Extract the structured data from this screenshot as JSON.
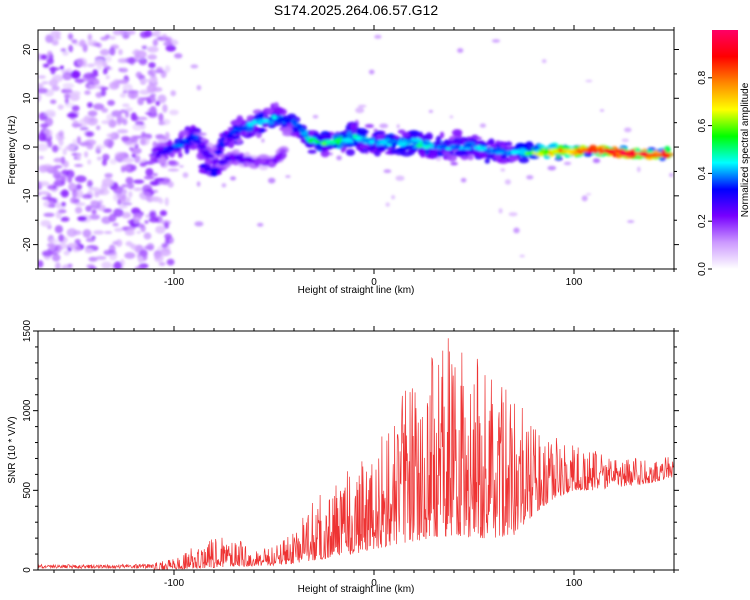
{
  "title": "S174.2025.264.06.57.G12",
  "chart_data": [
    {
      "type": "heatmap",
      "name": "spectrogram",
      "xlabel": "Height of straight line (km)",
      "ylabel": "Frequency (Hz)",
      "xlim": [
        -168,
        150
      ],
      "ylim": [
        -25,
        24
      ],
      "xticks": [
        -100,
        0,
        100
      ],
      "yticks": [
        -20,
        -10,
        0,
        10,
        20
      ],
      "colorbar": {
        "label": "Normalized spectral amplitude",
        "range": [
          0,
          1
        ],
        "ticks": [
          0.0,
          0.2,
          0.4,
          0.6,
          0.8
        ],
        "colors": [
          "#ffffff",
          "#cc99ff",
          "#7700ff",
          "#0000ff",
          "#00ffff",
          "#00ff00",
          "#ffff00",
          "#ff8800",
          "#ff0000",
          "#ff0066"
        ]
      },
      "noise_region": {
        "x": [
          -168,
          -100
        ],
        "y": [
          -25,
          24
        ],
        "amplitude": 0.2
      },
      "signal_track": {
        "x": [
          -110,
          -100,
          -90,
          -80,
          -75,
          -70,
          -60,
          -50,
          -40,
          -30,
          -20,
          -10,
          0,
          10,
          20,
          30,
          40,
          50,
          60,
          70,
          80,
          90,
          100,
          110,
          120,
          130,
          140,
          148
        ],
        "frequency": [
          -2,
          0,
          2,
          -3,
          2,
          3,
          5,
          6,
          5,
          1,
          1,
          2,
          1,
          1,
          1,
          0,
          0,
          0,
          -1,
          -1,
          -1,
          -1,
          -1,
          -0.5,
          -1,
          -1.5,
          -1.5,
          -1.5
        ],
        "width": [
          2,
          3,
          3,
          2,
          2,
          3,
          3,
          3,
          3,
          2,
          2,
          3,
          3,
          3,
          3,
          3,
          3,
          3,
          3,
          2,
          1.5,
          1.5,
          1,
          1,
          1,
          1,
          1,
          1
        ],
        "amplitude": [
          0.25,
          0.35,
          0.35,
          0.25,
          0.35,
          0.35,
          0.4,
          0.4,
          0.35,
          0.5,
          0.55,
          0.45,
          0.4,
          0.4,
          0.45,
          0.4,
          0.4,
          0.4,
          0.4,
          0.4,
          0.6,
          0.7,
          0.75,
          0.85,
          0.9,
          0.9,
          0.85,
          0.85
        ]
      },
      "secondary_track": {
        "x": [
          -85,
          -80,
          -75,
          -70,
          -60,
          -50,
          -45
        ],
        "frequency": [
          -4,
          -5,
          -3,
          -2,
          -3,
          -3,
          -1
        ],
        "width": [
          1.5,
          1.5,
          1.5,
          1.5,
          1,
          1,
          1
        ],
        "amplitude": [
          0.3,
          0.3,
          0.25,
          0.25,
          0.2,
          0.2,
          0.2
        ]
      }
    },
    {
      "type": "line",
      "name": "snr",
      "xlabel": "Height of straight line (km)",
      "ylabel": "SNR (10 * V/V)",
      "xlim": [
        -168,
        150
      ],
      "ylim": [
        0,
        1500
      ],
      "xticks": [
        -100,
        0,
        100
      ],
      "yticks": [
        0,
        500,
        1000,
        1500
      ],
      "color": "#ee3333",
      "series": [
        {
          "name": "SNR",
          "envelope": {
            "x": [
              -168,
              -120,
              -110,
              -100,
              -90,
              -80,
              -70,
              -60,
              -50,
              -40,
              -30,
              -20,
              -10,
              0,
              10,
              20,
              30,
              40,
              50,
              60,
              70,
              80,
              90,
              100,
              110,
              120,
              130,
              140,
              150
            ],
            "low": [
              0,
              0,
              0,
              5,
              10,
              15,
              20,
              25,
              30,
              40,
              60,
              80,
              100,
              130,
              160,
              180,
              200,
              220,
              200,
              200,
              220,
              350,
              450,
              500,
              500,
              520,
              530,
              550,
              580
            ],
            "high": [
              50,
              50,
              60,
              80,
              150,
              200,
              220,
              120,
              150,
              250,
              450,
              550,
              700,
              750,
              1000,
              1250,
              1350,
              1500,
              1400,
              1300,
              1100,
              900,
              850,
              800,
              750,
              700,
              700,
              700,
              720
            ]
          }
        }
      ]
    }
  ]
}
